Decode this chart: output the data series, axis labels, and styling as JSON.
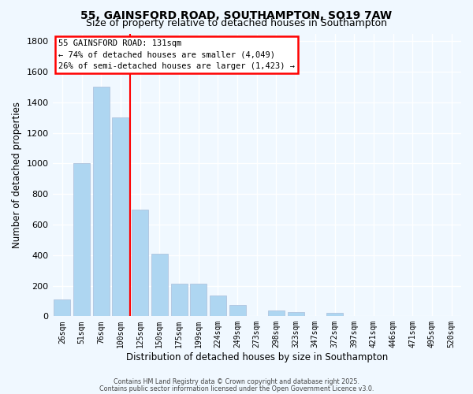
{
  "title": "55, GAINSFORD ROAD, SOUTHAMPTON, SO19 7AW",
  "subtitle": "Size of property relative to detached houses in Southampton",
  "xlabel": "Distribution of detached houses by size in Southampton",
  "ylabel": "Number of detached properties",
  "bar_labels": [
    "26sqm",
    "51sqm",
    "76sqm",
    "100sqm",
    "125sqm",
    "150sqm",
    "175sqm",
    "199sqm",
    "224sqm",
    "249sqm",
    "273sqm",
    "298sqm",
    "323sqm",
    "347sqm",
    "372sqm",
    "397sqm",
    "421sqm",
    "446sqm",
    "471sqm",
    "495sqm",
    "520sqm"
  ],
  "bar_values": [
    110,
    1000,
    1500,
    1300,
    700,
    410,
    215,
    215,
    135,
    75,
    0,
    40,
    25,
    0,
    20,
    0,
    0,
    0,
    0,
    0,
    0
  ],
  "bar_color": "#aed6f1",
  "bar_edge_color": "#b0c4de",
  "background_color": "#f0f8ff",
  "grid_color": "#ffffff",
  "vline_color": "red",
  "vline_position": 3.5,
  "annotation_title": "55 GAINSFORD ROAD: 131sqm",
  "annotation_line1": "← 74% of detached houses are smaller (4,049)",
  "annotation_line2": "26% of semi-detached houses are larger (1,423) →",
  "annotation_box_edge": "red",
  "ylim": [
    0,
    1850
  ],
  "ytick_interval": 200,
  "title_fontsize": 10,
  "subtitle_fontsize": 9,
  "footer1": "Contains HM Land Registry data © Crown copyright and database right 2025.",
  "footer2": "Contains public sector information licensed under the Open Government Licence v3.0."
}
